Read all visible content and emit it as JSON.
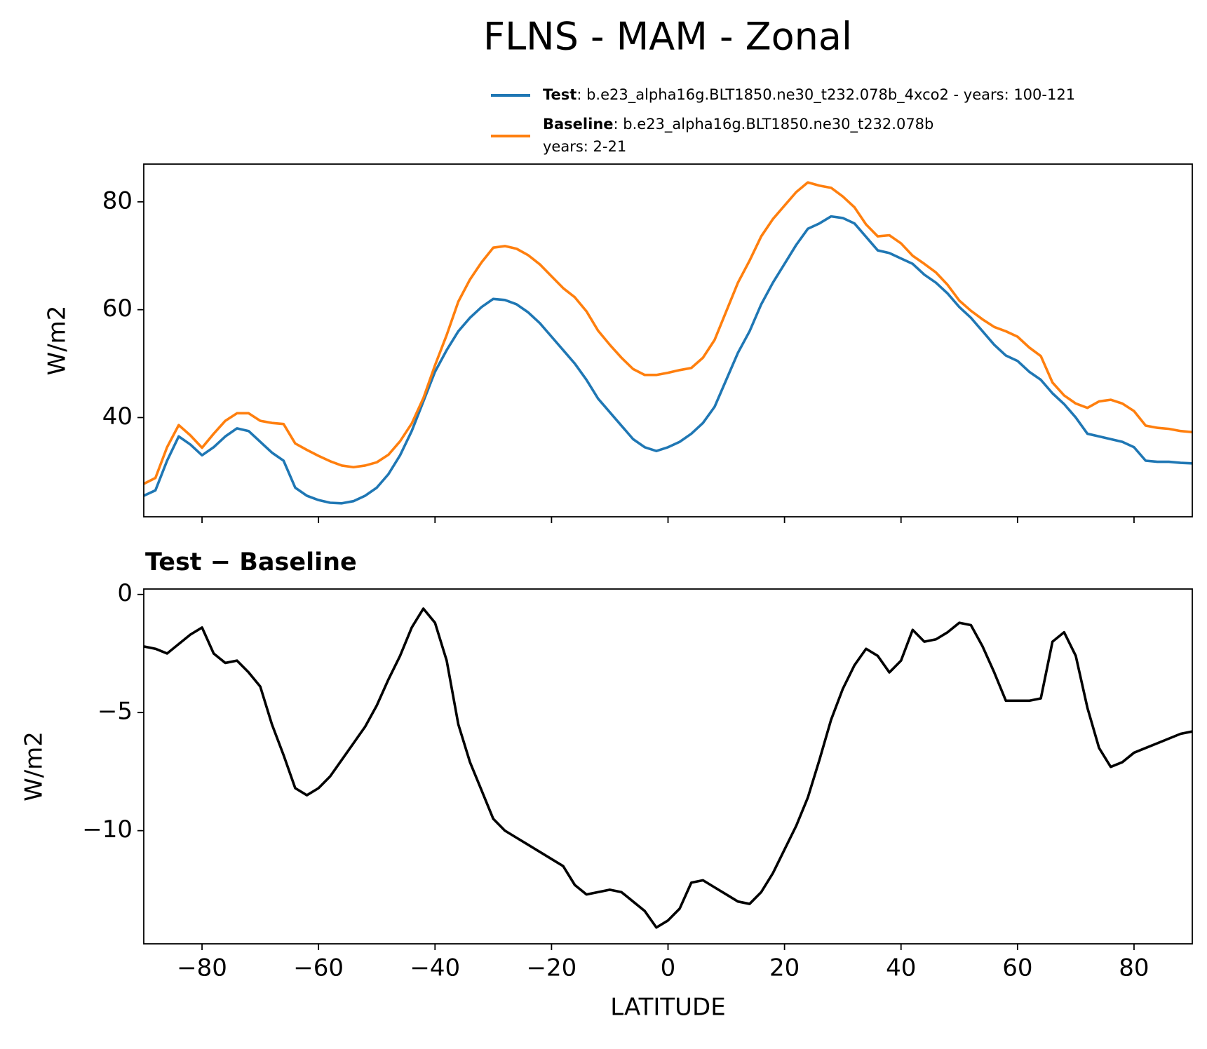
{
  "title": "FLNS - MAM - Zonal",
  "chart_data": [
    {
      "type": "line",
      "ylabel": "W/m2",
      "x": [
        -90,
        -88,
        -86,
        -84,
        -82,
        -80,
        -78,
        -76,
        -74,
        -72,
        -70,
        -68,
        -66,
        -64,
        -62,
        -60,
        -58,
        -56,
        -54,
        -52,
        -50,
        -48,
        -46,
        -44,
        -42,
        -40,
        -38,
        -36,
        -34,
        -32,
        -30,
        -28,
        -26,
        -24,
        -22,
        -20,
        -18,
        -16,
        -14,
        -12,
        -10,
        -8,
        -6,
        -4,
        -2,
        0,
        2,
        4,
        6,
        8,
        10,
        12,
        14,
        16,
        18,
        20,
        22,
        24,
        26,
        28,
        30,
        32,
        34,
        36,
        38,
        40,
        42,
        44,
        46,
        48,
        50,
        52,
        54,
        56,
        58,
        60,
        62,
        64,
        66,
        68,
        70,
        72,
        74,
        76,
        78,
        80,
        82,
        84,
        86,
        88,
        90
      ],
      "series": [
        {
          "name": "Test",
          "description": [
            ": b.e23_alpha16g.BLT1850.ne30_t232.078b_4xco2 - years: 100-121"
          ],
          "color": "#1f77b4",
          "values": [
            25.5,
            26.5,
            32,
            36.5,
            35,
            33,
            34.5,
            36.5,
            38,
            37.5,
            35.5,
            33.5,
            32,
            27,
            25.5,
            24.7,
            24.2,
            24.1,
            24.5,
            25.5,
            27,
            29.5,
            33,
            37.5,
            43,
            48.5,
            52.5,
            56,
            58.5,
            60.5,
            62,
            61.8,
            61,
            59.5,
            57.5,
            55,
            52.5,
            50,
            47,
            43.5,
            41,
            38.5,
            36,
            34.5,
            33.8,
            34.5,
            35.5,
            37,
            39,
            42,
            47,
            52,
            56,
            61,
            65,
            68.5,
            72,
            75,
            76,
            77.3,
            77,
            76,
            73.5,
            71,
            70.5,
            69.5,
            68.5,
            66.5,
            65,
            63,
            60.5,
            58.5,
            56,
            53.5,
            51.5,
            50.5,
            48.5,
            47,
            44.5,
            42.5,
            40,
            37,
            36.5,
            36,
            35.5,
            34.5,
            32,
            31.8,
            31.8,
            31.6,
            31.5
          ]
        },
        {
          "name": "Baseline",
          "description": [
            ": b.e23_alpha16g.BLT1850.ne30_t232.078b",
            "years: 2-21"
          ],
          "color": "#ff7f0e",
          "values": [
            27.7,
            28.8,
            34.5,
            38.6,
            36.7,
            34.4,
            37,
            39.4,
            40.8,
            40.8,
            39.4,
            39,
            38.8,
            35.2,
            34,
            32.9,
            31.9,
            31.1,
            30.8,
            31.1,
            31.7,
            33.1,
            35.6,
            38.9,
            43.6,
            49.7,
            55.3,
            61.5,
            65.6,
            68.8,
            71.5,
            71.8,
            71.3,
            70.1,
            68.4,
            66.2,
            64,
            62.3,
            59.7,
            56.1,
            53.5,
            51.1,
            49,
            47.9,
            47.9,
            48.3,
            48.8,
            49.2,
            51.1,
            54.4,
            59.7,
            65,
            69.1,
            73.6,
            76.8,
            79.3,
            81.8,
            83.6,
            83,
            82.6,
            81,
            79,
            75.8,
            73.6,
            73.8,
            72.3,
            70,
            68.5,
            66.9,
            64.6,
            61.7,
            59.8,
            58.2,
            56.8,
            56,
            55,
            53,
            51.4,
            46.5,
            44.1,
            42.6,
            41.8,
            43,
            43.3,
            42.6,
            41.2,
            38.5,
            38.1,
            37.9,
            37.5,
            37.3
          ]
        }
      ],
      "xlim": [
        -90,
        90
      ],
      "xticks": [
        -80,
        -60,
        -40,
        -20,
        0,
        20,
        40,
        60,
        80
      ],
      "ylim": [
        21.6,
        87.0
      ],
      "yticks": [
        40,
        60,
        80
      ]
    },
    {
      "type": "line",
      "title": "Test − Baseline",
      "xlabel": "LATITUDE",
      "ylabel": "W/m2",
      "x": [
        -90,
        -88,
        -86,
        -84,
        -82,
        -80,
        -78,
        -76,
        -74,
        -72,
        -70,
        -68,
        -66,
        -64,
        -62,
        -60,
        -58,
        -56,
        -54,
        -52,
        -50,
        -48,
        -46,
        -44,
        -42,
        -40,
        -38,
        -36,
        -34,
        -32,
        -30,
        -28,
        -26,
        -24,
        -22,
        -20,
        -18,
        -16,
        -14,
        -12,
        -10,
        -8,
        -6,
        -4,
        -2,
        0,
        2,
        4,
        6,
        8,
        10,
        12,
        14,
        16,
        18,
        20,
        22,
        24,
        26,
        28,
        30,
        32,
        34,
        36,
        38,
        40,
        42,
        44,
        46,
        48,
        50,
        52,
        54,
        56,
        58,
        60,
        62,
        64,
        66,
        68,
        70,
        72,
        74,
        76,
        78,
        80,
        82,
        84,
        86,
        88,
        90
      ],
      "series": [
        {
          "color": "#000000",
          "values": [
            -2.2,
            -2.3,
            -2.5,
            -2.1,
            -1.7,
            -1.4,
            -2.5,
            -2.9,
            -2.8,
            -3.3,
            -3.9,
            -5.5,
            -6.8,
            -8.2,
            -8.5,
            -8.2,
            -7.7,
            -7,
            -6.3,
            -5.6,
            -4.7,
            -3.6,
            -2.6,
            -1.4,
            -0.6,
            -1.2,
            -2.8,
            -5.5,
            -7.1,
            -8.3,
            -9.5,
            -10,
            -10.3,
            -10.6,
            -10.9,
            -11.2,
            -11.5,
            -12.3,
            -12.7,
            -12.6,
            -12.5,
            -12.6,
            -13,
            -13.4,
            -14.1,
            -13.8,
            -13.3,
            -12.2,
            -12.1,
            -12.4,
            -12.7,
            -13,
            -13.1,
            -12.6,
            -11.8,
            -10.8,
            -9.8,
            -8.6,
            -7,
            -5.3,
            -4,
            -3,
            -2.3,
            -2.6,
            -3.3,
            -2.8,
            -1.5,
            -2,
            -1.9,
            -1.6,
            -1.2,
            -1.3,
            -2.2,
            -3.3,
            -4.5,
            -4.5,
            -4.5,
            -4.4,
            -2,
            -1.6,
            -2.6,
            -4.8,
            -6.5,
            -7.3,
            -7.1,
            -6.7,
            -6.5,
            -6.3,
            -6.1,
            -5.9,
            -5.8
          ]
        }
      ],
      "xlim": [
        -90,
        90
      ],
      "xticks": [
        {
          "value": -80,
          "label": "−80"
        },
        {
          "value": -60,
          "label": "−60"
        },
        {
          "value": -40,
          "label": "−40"
        },
        {
          "value": -20,
          "label": "−20"
        },
        0,
        20,
        40,
        60,
        80
      ],
      "ylim": [
        -14.79,
        0.23
      ],
      "yticks": [
        0,
        {
          "value": -5,
          "label": "−5"
        },
        {
          "value": -10,
          "label": "−10"
        }
      ]
    }
  ]
}
